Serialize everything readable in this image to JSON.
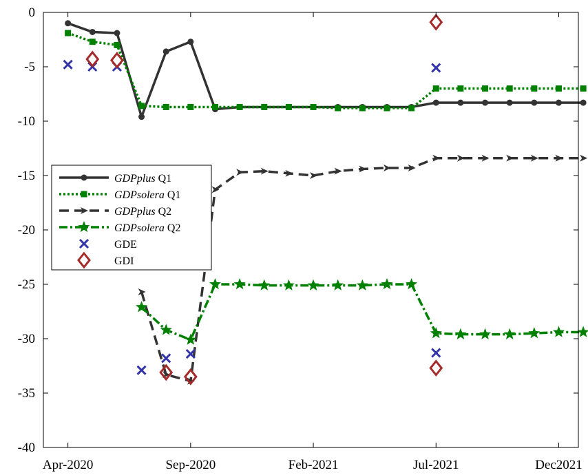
{
  "chart_data": {
    "type": "line",
    "title": "",
    "xlabel": "",
    "ylabel": "",
    "xlim": [
      0,
      21.8
    ],
    "ylim": [
      -40,
      0
    ],
    "grid": false,
    "legend_position": "center-left",
    "x_ticks": [
      {
        "x": 1,
        "label": "Apr-2020"
      },
      {
        "x": 6,
        "label": "Sep-2020"
      },
      {
        "x": 11,
        "label": "Feb-2021"
      },
      {
        "x": 16,
        "label": "Jul-2021"
      },
      {
        "x": 21,
        "label": "Dec2021"
      }
    ],
    "y_ticks": [
      {
        "y": 0,
        "label": "0"
      },
      {
        "y": -5,
        "label": "-5"
      },
      {
        "y": -10,
        "label": "-10"
      },
      {
        "y": -15,
        "label": "-15"
      },
      {
        "y": -20,
        "label": "-20"
      },
      {
        "y": -25,
        "label": "-25"
      },
      {
        "y": -30,
        "label": "-30"
      },
      {
        "y": -35,
        "label": "-35"
      },
      {
        "y": -40,
        "label": "-40"
      }
    ],
    "series": [
      {
        "name_italic": "GDPplus",
        "name_rest": " Q1",
        "color": "#333333",
        "dash": "",
        "marker": "circle",
        "width": 3.5,
        "points": [
          [
            1,
            -1.0
          ],
          [
            2,
            -1.8
          ],
          [
            3,
            -1.9
          ],
          [
            4,
            -9.6
          ],
          [
            5,
            -3.6
          ],
          [
            6,
            -2.7
          ],
          [
            7,
            -8.9
          ],
          [
            8,
            -8.7
          ],
          [
            9,
            -8.7
          ],
          [
            10,
            -8.7
          ],
          [
            11,
            -8.7
          ],
          [
            12,
            -8.7
          ],
          [
            13,
            -8.7
          ],
          [
            14,
            -8.7
          ],
          [
            15,
            -8.7
          ],
          [
            16,
            -8.3
          ],
          [
            17,
            -8.3
          ],
          [
            18,
            -8.3
          ],
          [
            19,
            -8.3
          ],
          [
            20,
            -8.3
          ],
          [
            21,
            -8.3
          ],
          [
            22,
            -8.3
          ]
        ]
      },
      {
        "name_italic": "GDPsolera",
        "name_rest": " Q1",
        "color": "#008000",
        "dash": "3,3",
        "marker": "square",
        "width": 3.5,
        "points": [
          [
            1,
            -1.9
          ],
          [
            2,
            -2.7
          ],
          [
            3,
            -3.0
          ],
          [
            4,
            -8.6
          ],
          [
            5,
            -8.7
          ],
          [
            6,
            -8.7
          ],
          [
            7,
            -8.7
          ],
          [
            8,
            -8.7
          ],
          [
            9,
            -8.7
          ],
          [
            10,
            -8.7
          ],
          [
            11,
            -8.7
          ],
          [
            12,
            -8.8
          ],
          [
            13,
            -8.8
          ],
          [
            14,
            -8.8
          ],
          [
            15,
            -8.8
          ],
          [
            16,
            -7.0
          ],
          [
            17,
            -7.0
          ],
          [
            18,
            -7.0
          ],
          [
            19,
            -7.0
          ],
          [
            20,
            -7.0
          ],
          [
            21,
            -7.0
          ],
          [
            22,
            -7.0
          ]
        ]
      },
      {
        "name_italic": "GDPplus",
        "name_rest": " Q2",
        "color": "#333333",
        "dash": "14,8",
        "marker": "arrow",
        "width": 3.5,
        "points": [
          [
            4,
            -25.7
          ],
          [
            5,
            -33.3
          ],
          [
            6,
            -33.9
          ],
          [
            7,
            -16.3
          ],
          [
            8,
            -14.7
          ],
          [
            9,
            -14.6
          ],
          [
            10,
            -14.8
          ],
          [
            11,
            -15.0
          ],
          [
            12,
            -14.6
          ],
          [
            13,
            -14.4
          ],
          [
            14,
            -14.3
          ],
          [
            15,
            -14.3
          ],
          [
            16,
            -13.4
          ],
          [
            17,
            -13.4
          ],
          [
            18,
            -13.4
          ],
          [
            19,
            -13.4
          ],
          [
            20,
            -13.4
          ],
          [
            21,
            -13.4
          ],
          [
            22,
            -13.4
          ]
        ]
      },
      {
        "name_italic": "GDPsolera",
        "name_rest": " Q2",
        "color": "#008000",
        "dash": "12,4,3,4",
        "marker": "star",
        "width": 3.5,
        "points": [
          [
            4,
            -27.1
          ],
          [
            5,
            -29.2
          ],
          [
            6,
            -30.1
          ],
          [
            7,
            -25.0
          ],
          [
            8,
            -25.0
          ],
          [
            9,
            -25.1
          ],
          [
            10,
            -25.1
          ],
          [
            11,
            -25.1
          ],
          [
            12,
            -25.1
          ],
          [
            13,
            -25.1
          ],
          [
            14,
            -25.0
          ],
          [
            15,
            -25.0
          ],
          [
            16,
            -29.5
          ],
          [
            17,
            -29.6
          ],
          [
            18,
            -29.6
          ],
          [
            19,
            -29.6
          ],
          [
            20,
            -29.5
          ],
          [
            21,
            -29.4
          ],
          [
            22,
            -29.4
          ]
        ]
      },
      {
        "name_italic": "",
        "name_rest": "GDE",
        "color": "#3333aa",
        "dash": "none",
        "marker": "x",
        "width": 0,
        "points": [
          [
            1,
            -4.8
          ],
          [
            2,
            -5.0
          ],
          [
            3,
            -5.0
          ],
          [
            4,
            -32.9
          ],
          [
            5,
            -31.8
          ],
          [
            6,
            -31.4
          ],
          [
            16,
            -5.1
          ],
          [
            16,
            -31.3
          ]
        ]
      },
      {
        "name_italic": "",
        "name_rest": "GDI",
        "color": "#a52a2a",
        "dash": "none",
        "marker": "diamond",
        "width": 0,
        "points": [
          [
            2,
            -4.3
          ],
          [
            3,
            -4.4
          ],
          [
            5,
            -33.1
          ],
          [
            6,
            -33.5
          ],
          [
            16,
            -0.9
          ],
          [
            16,
            -32.7
          ]
        ]
      }
    ]
  }
}
